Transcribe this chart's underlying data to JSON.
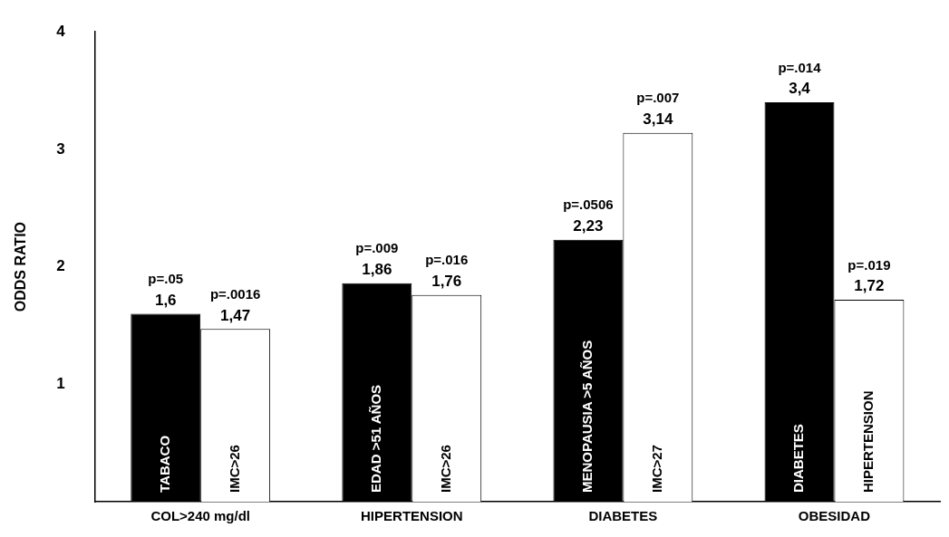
{
  "chart_data": {
    "type": "bar",
    "ylabel": "ODDS RATIO",
    "categories": [
      "COL>240 mg/dl",
      "HIPERTENSION",
      "DIABETES",
      "OBESIDAD"
    ],
    "series": [
      {
        "color": "#000000",
        "values": [
          1.6,
          1.86,
          2.23,
          3.4
        ],
        "value_labels": [
          "1,6",
          "1,86",
          "2,23",
          "3,4"
        ]
      },
      {
        "color": "#ffffff",
        "values": [
          1.47,
          1.76,
          3.14,
          1.72
        ],
        "value_labels": [
          "1,47",
          "1,76",
          "3,14",
          "1,72"
        ]
      }
    ],
    "ylim": [
      0,
      4
    ],
    "yticks": [
      1,
      2,
      3,
      4
    ],
    "grid": false,
    "legend": false,
    "annotations": [
      {
        "text": "p=.05",
        "x": "COL>240 mg/dl",
        "y": 1.6
      },
      {
        "text": "p=.0016",
        "x": "COL>240 mg/dl",
        "y": 1.47
      },
      {
        "text": "p=.009",
        "x": "HIPERTENSION",
        "y": 1.86
      },
      {
        "text": "p=.016",
        "x": "HIPERTENSION",
        "y": 1.76
      },
      {
        "text": "p=.0506",
        "x": "DIABETES",
        "y": 2.23
      },
      {
        "text": "p=.007",
        "x": "DIABETES",
        "y": 3.14
      },
      {
        "text": "p=.014",
        "x": "OBESIDAD",
        "y": 3.4
      },
      {
        "text": "p=.019",
        "x": "OBESIDAD",
        "y": 1.72
      },
      {
        "text": "TABACO",
        "x": "COL>240 mg/dl",
        "y": 0
      },
      {
        "text": "IMC>26",
        "x": "COL>240 mg/dl",
        "y": 0
      },
      {
        "text": "EDAD >51 AÑOS",
        "x": "HIPERTENSION",
        "y": 0
      },
      {
        "text": "IMC>26",
        "x": "HIPERTENSION",
        "y": 0
      },
      {
        "text": "MENOPAUSIA >5 AÑOS",
        "x": "DIABETES",
        "y": 0
      },
      {
        "text": "IMC>27",
        "x": "DIABETES",
        "y": 0
      },
      {
        "text": "DIABETES",
        "x": "OBESIDAD",
        "y": 0
      },
      {
        "text": "HIPERTENSION",
        "x": "OBESIDAD",
        "y": 0
      }
    ]
  }
}
